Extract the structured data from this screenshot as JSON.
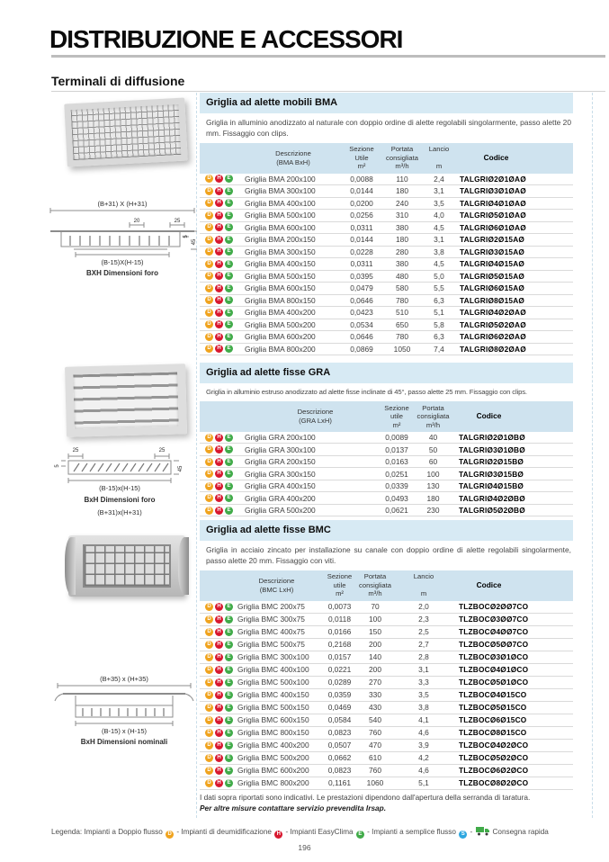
{
  "page": {
    "title": "DISTRIBUZIONE E ACCESSORI",
    "subtitle": "Terminali di diffusione",
    "page_number": "196"
  },
  "colors": {
    "section_bar_bg": "#d7eaf4",
    "table_header_bg": "#cfe3ef",
    "icon_d": "#f0a31d",
    "icon_h": "#d8182f",
    "icon_e": "#41ab49",
    "icon_s": "#2da7e0",
    "truck_green": "#41ab49"
  },
  "sections": [
    {
      "key": "bma",
      "bar_title": "Griglia ad alette mobili BMA",
      "description": "Griglia in alluminio anodizzato al naturale con doppio ordine di alette regolabili singolarmente, passo alette 20 mm. Fissaggio con clips.",
      "row_icons": [
        "D",
        "H",
        "E"
      ],
      "columns": [
        {
          "key": "desc",
          "cls": "h-desc",
          "body_cls": "b-desc",
          "lines": [
            "Descrizione",
            "(BMA BxH)"
          ]
        },
        {
          "key": "sezione",
          "cls": "c-sez",
          "body_cls": "c-sez",
          "lines": [
            "Sezione",
            "Utile",
            "m²"
          ]
        },
        {
          "key": "portata",
          "cls": "c-por",
          "body_cls": "c-por",
          "lines": [
            "Portata",
            "consigliata",
            "m³/h"
          ]
        },
        {
          "key": "lancio",
          "cls": "c-lan",
          "body_cls": "c-lan",
          "lines": [
            "Lancio",
            "",
            "m"
          ]
        },
        {
          "key": "codice",
          "cls": "h-cod hc-bold",
          "body_cls": "b-cod",
          "lines": [
            "Codice"
          ]
        }
      ],
      "rows": [
        {
          "desc": "Griglia BMA 200x100",
          "sezione": "0,0088",
          "portata": "110",
          "lancio": "2,4",
          "codice": "TALGRIØ2Ø1ØAØ"
        },
        {
          "desc": "Griglia BMA 300x100",
          "sezione": "0,0144",
          "portata": "180",
          "lancio": "3,1",
          "codice": "TALGRIØ3Ø1ØAØ"
        },
        {
          "desc": "Griglia BMA 400x100",
          "sezione": "0,0200",
          "portata": "240",
          "lancio": "3,5",
          "codice": "TALGRIØ4Ø1ØAØ"
        },
        {
          "desc": "Griglia BMA 500x100",
          "sezione": "0,0256",
          "portata": "310",
          "lancio": "4,0",
          "codice": "TALGRIØ5Ø1ØAØ"
        },
        {
          "desc": "Griglia BMA 600x100",
          "sezione": "0,0311",
          "portata": "380",
          "lancio": "4,5",
          "codice": "TALGRIØ6Ø1ØAØ"
        },
        {
          "desc": "Griglia BMA 200x150",
          "sezione": "0,0144",
          "portata": "180",
          "lancio": "3,1",
          "codice": "TALGRIØ2Ø15AØ"
        },
        {
          "desc": "Griglia BMA 300x150",
          "sezione": "0,0228",
          "portata": "280",
          "lancio": "3,8",
          "codice": "TALGRIØ3Ø15AØ"
        },
        {
          "desc": "Griglia BMA 400x150",
          "sezione": "0,0311",
          "portata": "380",
          "lancio": "4,5",
          "codice": "TALGRIØ4Ø15AØ"
        },
        {
          "desc": "Griglia BMA 500x150",
          "sezione": "0,0395",
          "portata": "480",
          "lancio": "5,0",
          "codice": "TALGRIØ5Ø15AØ"
        },
        {
          "desc": "Griglia BMA 600x150",
          "sezione": "0,0479",
          "portata": "580",
          "lancio": "5,5",
          "codice": "TALGRIØ6Ø15AØ"
        },
        {
          "desc": "Griglia BMA 800x150",
          "sezione": "0,0646",
          "portata": "780",
          "lancio": "6,3",
          "codice": "TALGRIØ8Ø15AØ"
        },
        {
          "desc": "Griglia BMA 400x200",
          "sezione": "0,0423",
          "portata": "510",
          "lancio": "5,1",
          "codice": "TALGRIØ4Ø2ØAØ"
        },
        {
          "desc": "Griglia BMA 500x200",
          "sezione": "0,0534",
          "portata": "650",
          "lancio": "5,8",
          "codice": "TALGRIØ5Ø2ØAØ"
        },
        {
          "desc": "Griglia BMA 600x200",
          "sezione": "0,0646",
          "portata": "780",
          "lancio": "6,3",
          "codice": "TALGRIØ6Ø2ØAØ"
        },
        {
          "desc": "Griglia BMA 800x200",
          "sezione": "0,0869",
          "portata": "1050",
          "lancio": "7,4",
          "codice": "TALGRIØ8Ø2ØAØ"
        }
      ]
    },
    {
      "key": "gra",
      "bar_title": "Griglia ad alette fisse GRA",
      "description": "Griglia in alluminio estruso anodizzato ad alette fisse inclinate di 45°, passo alette 25 mm. Fissaggio con clips.",
      "row_icons": [
        "D",
        "H",
        "E"
      ],
      "columns": [
        {
          "key": "desc",
          "cls": "h-desc",
          "body_cls": "b-desc",
          "lines": [
            "Descrizione",
            "(GRA LxH)"
          ]
        },
        {
          "key": "sezione",
          "cls": "c-sez",
          "body_cls": "c-sez",
          "lines": [
            "Sezione",
            "utile",
            "m²"
          ]
        },
        {
          "key": "portata",
          "cls": "c-por",
          "body_cls": "c-por",
          "lines": [
            "Portata",
            "consigliata",
            "m³/h"
          ]
        },
        {
          "key": "codice",
          "cls": "h-cod hc-bold",
          "body_cls": "b-cod",
          "lines": [
            "Codice"
          ]
        }
      ],
      "rows": [
        {
          "desc": "Griglia GRA 200x100",
          "sezione": "0,0089",
          "portata": "40",
          "codice": "TALGRIØ2Ø1ØBØ"
        },
        {
          "desc": "Griglia GRA 300x100",
          "sezione": "0,0137",
          "portata": "50",
          "codice": "TALGRIØ3Ø1ØBØ"
        },
        {
          "desc": "Griglia GRA 200x150",
          "sezione": "0,0163",
          "portata": "60",
          "codice": "TALGRIØ2Ø15BØ"
        },
        {
          "desc": "Griglia GRA 300x150",
          "sezione": "0,0251",
          "portata": "100",
          "codice": "TALGRIØ3Ø15BØ"
        },
        {
          "desc": "Griglia GRA 400x150",
          "sezione": "0,0339",
          "portata": "130",
          "codice": "TALGRIØ4Ø15BØ"
        },
        {
          "desc": "Griglia GRA 400x200",
          "sezione": "0,0493",
          "portata": "180",
          "codice": "TALGRIØ4Ø2ØBØ"
        },
        {
          "desc": "Griglia GRA 500x200",
          "sezione": "0,0621",
          "portata": "230",
          "codice": "TALGRIØ5Ø2ØBØ"
        }
      ]
    },
    {
      "key": "bmc",
      "bar_title": "Griglia ad alette fisse BMC",
      "description": "Griglia in acciaio zincato per installazione su canale con doppio ordine di alette regolabili singolarmente, passo alette 20 mm. Fissaggio con viti.",
      "row_icons": [
        "D",
        "H",
        "E"
      ],
      "columns": [
        {
          "key": "desc",
          "cls": "h-desc",
          "body_cls": "b-desc",
          "lines": [
            "Descrizione",
            "(BMC LxH)"
          ]
        },
        {
          "key": "sezione",
          "cls": "c-sez",
          "body_cls": "c-sez",
          "lines": [
            "Sezione",
            "utile",
            "m²"
          ]
        },
        {
          "key": "portata",
          "cls": "c-por",
          "body_cls": "c-por",
          "lines": [
            "Portata",
            "consigliata",
            "m³/h"
          ]
        },
        {
          "key": "lancio",
          "cls": "c-lan",
          "body_cls": "c-lan",
          "lines": [
            "Lancio",
            "",
            "m"
          ]
        },
        {
          "key": "codice",
          "cls": "h-cod hc-bold",
          "body_cls": "b-cod",
          "lines": [
            "Codice"
          ]
        }
      ],
      "rows": [
        {
          "desc": "Griglia BMC 200x75",
          "sezione": "0,0073",
          "portata": "70",
          "lancio": "2,0",
          "codice": "TLZBOCØ2ØØ7CO"
        },
        {
          "desc": "Griglia BMC 300x75",
          "sezione": "0,0118",
          "portata": "100",
          "lancio": "2,3",
          "codice": "TLZBOCØ3ØØ7CO"
        },
        {
          "desc": "Griglia BMC 400x75",
          "sezione": "0,0166",
          "portata": "150",
          "lancio": "2,5",
          "codice": "TLZBOCØ4ØØ7CO"
        },
        {
          "desc": "Griglia BMC 500x75",
          "sezione": "0,2168",
          "portata": "200",
          "lancio": "2,7",
          "codice": "TLZBOCØ5ØØ7CO"
        },
        {
          "desc": "Griglia BMC 300x100",
          "sezione": "0,0157",
          "portata": "140",
          "lancio": "2,8",
          "codice": "TLZBOCØ3Ø1ØCO"
        },
        {
          "desc": "Griglia BMC 400x100",
          "sezione": "0,0221",
          "portata": "200",
          "lancio": "3,1",
          "codice": "TLZBOCØ4Ø1ØCO"
        },
        {
          "desc": "Griglia BMC 500x100",
          "sezione": "0,0289",
          "portata": "270",
          "lancio": "3,3",
          "codice": "TLZBOCØ5Ø1ØCO"
        },
        {
          "desc": "Griglia BMC 400x150",
          "sezione": "0,0359",
          "portata": "330",
          "lancio": "3,5",
          "codice": "TLZBOCØ4Ø15CO"
        },
        {
          "desc": "Griglia BMC 500x150",
          "sezione": "0,0469",
          "portata": "430",
          "lancio": "3,8",
          "codice": "TLZBOCØ5Ø15CO"
        },
        {
          "desc": "Griglia BMC 600x150",
          "sezione": "0,0584",
          "portata": "540",
          "lancio": "4,1",
          "codice": "TLZBOCØ6Ø15CO"
        },
        {
          "desc": "Griglia BMC 800x150",
          "sezione": "0,0823",
          "portata": "760",
          "lancio": "4,6",
          "codice": "TLZBOCØ8Ø15CO"
        },
        {
          "desc": "Griglia BMC 400x200",
          "sezione": "0,0507",
          "portata": "470",
          "lancio": "3,9",
          "codice": "TLZBOCØ4Ø2ØCO"
        },
        {
          "desc": "Griglia BMC 500x200",
          "sezione": "0,0662",
          "portata": "610",
          "lancio": "4,2",
          "codice": "TLZBOCØ5Ø2ØCO"
        },
        {
          "desc": "Griglia BMC 600x200",
          "sezione": "0,0823",
          "portata": "760",
          "lancio": "4,6",
          "codice": "TLZBOCØ6Ø2ØCO"
        },
        {
          "desc": "Griglia BMC 800x200",
          "sezione": "0,1161",
          "portata": "1060",
          "lancio": "5,1",
          "codice": "TLZBOCØ8Ø2ØCO"
        }
      ]
    }
  ],
  "footnotes": {
    "line1": "I dati sopra riportati sono indicativi. Le prestazioni dipendono dall'apertura della serranda di taratura.",
    "line2": "Per altre misure contattare servizio prevendita Irsap."
  },
  "figures": {
    "bma": {
      "diagram": {
        "top_label": "(B+31) X (H+31)",
        "dim_20": "20",
        "dim_25": "25",
        "dim_5": "5",
        "dim_45": "45",
        "hole_label": "(B-15)X(H-15)",
        "caption": "BXH Dimensioni foro"
      }
    },
    "gra": {
      "diagram": {
        "dim_25_left": "25",
        "dim_25_right": "25",
        "dim_5": "5",
        "dim_45": "45",
        "hole_label": "(B-15)x(H-15)",
        "caption": "BxH Dimensioni foro",
        "overall_label": "(B+31)x(H+31)"
      }
    },
    "bmc": {
      "diagram": {
        "top_label": "(B+35) x (H+35)",
        "hole_label": "(B-15) x (H-15)",
        "caption": "BxH Dimensioni nominali"
      }
    }
  },
  "legend": {
    "prefix": "Legenda:",
    "items": [
      {
        "label": "Impianti a Doppio flusso",
        "icon": "D"
      },
      {
        "label": "Impianti di deumidificazione",
        "icon": "H"
      },
      {
        "label": "Impianti EasyClima",
        "icon": "E"
      },
      {
        "label": "Impianti a semplice flusso",
        "icon": "S"
      },
      {
        "label": "Consegna rapida",
        "icon": "truck"
      }
    ]
  }
}
